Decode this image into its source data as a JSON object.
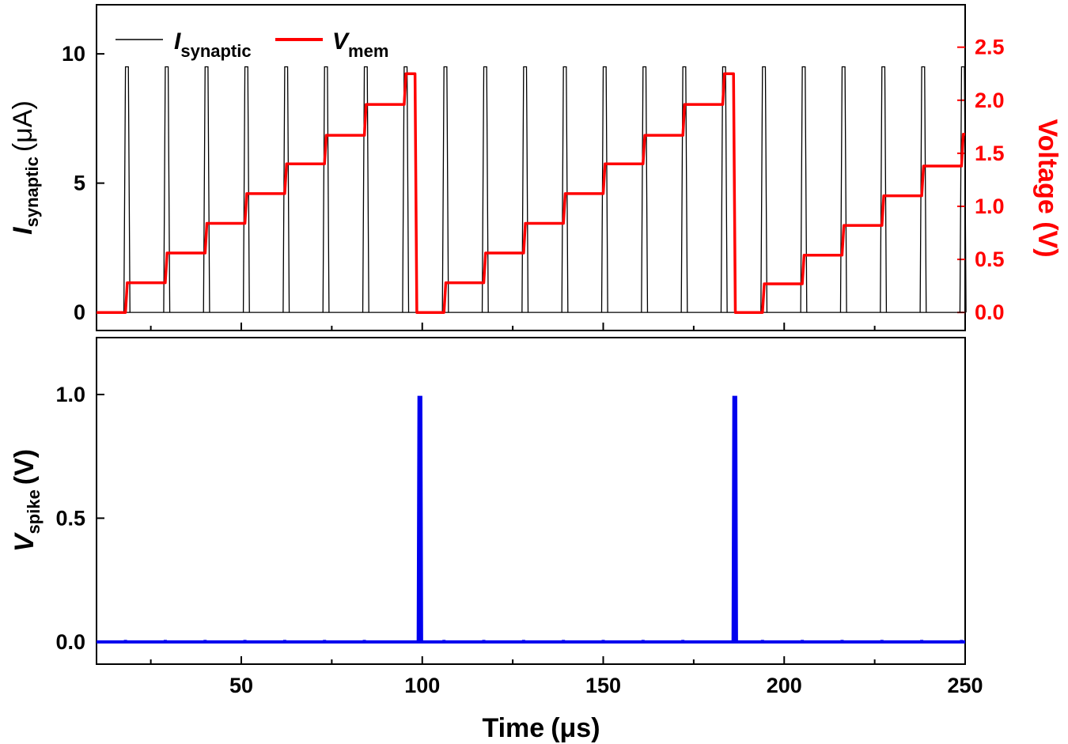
{
  "chart_data": [
    {
      "type": "line",
      "panel": "top",
      "x_range": [
        10,
        250
      ],
      "left_axis": {
        "label_main": "I",
        "label_sub": "synaptic",
        "label_unit": "(μA)",
        "ylim": [
          -0.7,
          11.9
        ],
        "ticks": [
          "0",
          "5",
          "10"
        ],
        "tick_values": [
          0,
          5,
          10
        ]
      },
      "right_axis": {
        "label": "Voltage (V)",
        "ylim": [
          -0.17,
          2.9
        ],
        "ticks": [
          "0.0",
          "0.5",
          "1.0",
          "1.5",
          "2.0",
          "2.5"
        ],
        "tick_values": [
          0,
          0.5,
          1.0,
          1.5,
          2.0,
          2.5
        ],
        "color": "#ff0000"
      },
      "legend": {
        "placement": "top-left",
        "items": [
          {
            "main": "I",
            "sub": "synaptic",
            "color": "#000000"
          },
          {
            "main": "V",
            "sub": "mem",
            "color": "#ff0000"
          }
        ]
      },
      "series": [
        {
          "name": "I_synaptic",
          "axis": "left",
          "color": "#000000",
          "pulse_times": [
            18,
            29,
            40,
            51,
            62,
            73,
            84,
            95,
            106,
            117,
            128,
            139,
            150,
            161,
            172,
            183,
            194,
            205,
            216,
            227,
            238,
            249
          ],
          "pulse_width": 0.8,
          "amplitude": 9.5,
          "baseline": 0
        },
        {
          "name": "V_mem",
          "axis": "right",
          "color": "#ff0000",
          "x": [
            10,
            18,
            18.5,
            29,
            29.5,
            40,
            40.5,
            51,
            51.5,
            62,
            62.5,
            73,
            73.5,
            84,
            84.5,
            95,
            95.5,
            98,
            98.5,
            106,
            106.5,
            117,
            117.5,
            128,
            128.5,
            139,
            139.5,
            150,
            150.5,
            161,
            161.5,
            172,
            172.5,
            183,
            183.5,
            186,
            186.5,
            194,
            194.5,
            205,
            205.5,
            216,
            216.5,
            227,
            227.5,
            238,
            238.5,
            249,
            249.5,
            250
          ],
          "y": [
            0,
            0,
            0.28,
            0.28,
            0.56,
            0.56,
            0.84,
            0.84,
            1.12,
            1.12,
            1.4,
            1.4,
            1.67,
            1.67,
            1.96,
            1.96,
            2.25,
            2.25,
            0,
            0,
            0.28,
            0.28,
            0.56,
            0.56,
            0.84,
            0.84,
            1.12,
            1.12,
            1.4,
            1.4,
            1.67,
            1.67,
            1.96,
            1.96,
            2.25,
            2.25,
            0,
            0,
            0.27,
            0.27,
            0.54,
            0.54,
            0.82,
            0.82,
            1.1,
            1.1,
            1.38,
            1.38,
            1.68,
            1.68
          ]
        }
      ]
    },
    {
      "type": "line",
      "panel": "bottom",
      "x_range": [
        10,
        250
      ],
      "xlabel_main": "Time",
      "xlabel_unit": "(μs)",
      "x_ticks": [
        "50",
        "100",
        "150",
        "200",
        "250"
      ],
      "x_tick_values": [
        50,
        100,
        150,
        200,
        250
      ],
      "y_axis": {
        "label_main": "V",
        "label_sub": "spike",
        "label_unit": "(V)",
        "ylim": [
          -0.09,
          1.23
        ],
        "ticks": [
          "0.0",
          "0.5",
          "1.0"
        ],
        "tick_values": [
          0,
          0.5,
          1.0
        ]
      },
      "series": [
        {
          "name": "V_spike",
          "color": "#0000ee",
          "baseline": 0,
          "spike_times": [
            99,
            186
          ],
          "spike_height": 0.99,
          "spike_width": 0.7,
          "ripple_times": [
            18,
            29,
            40,
            51,
            62,
            73,
            84,
            106,
            117,
            128,
            139,
            150,
            161,
            172,
            194,
            205,
            216,
            227,
            238,
            249
          ],
          "ripple_height": 0.008
        }
      ]
    }
  ]
}
